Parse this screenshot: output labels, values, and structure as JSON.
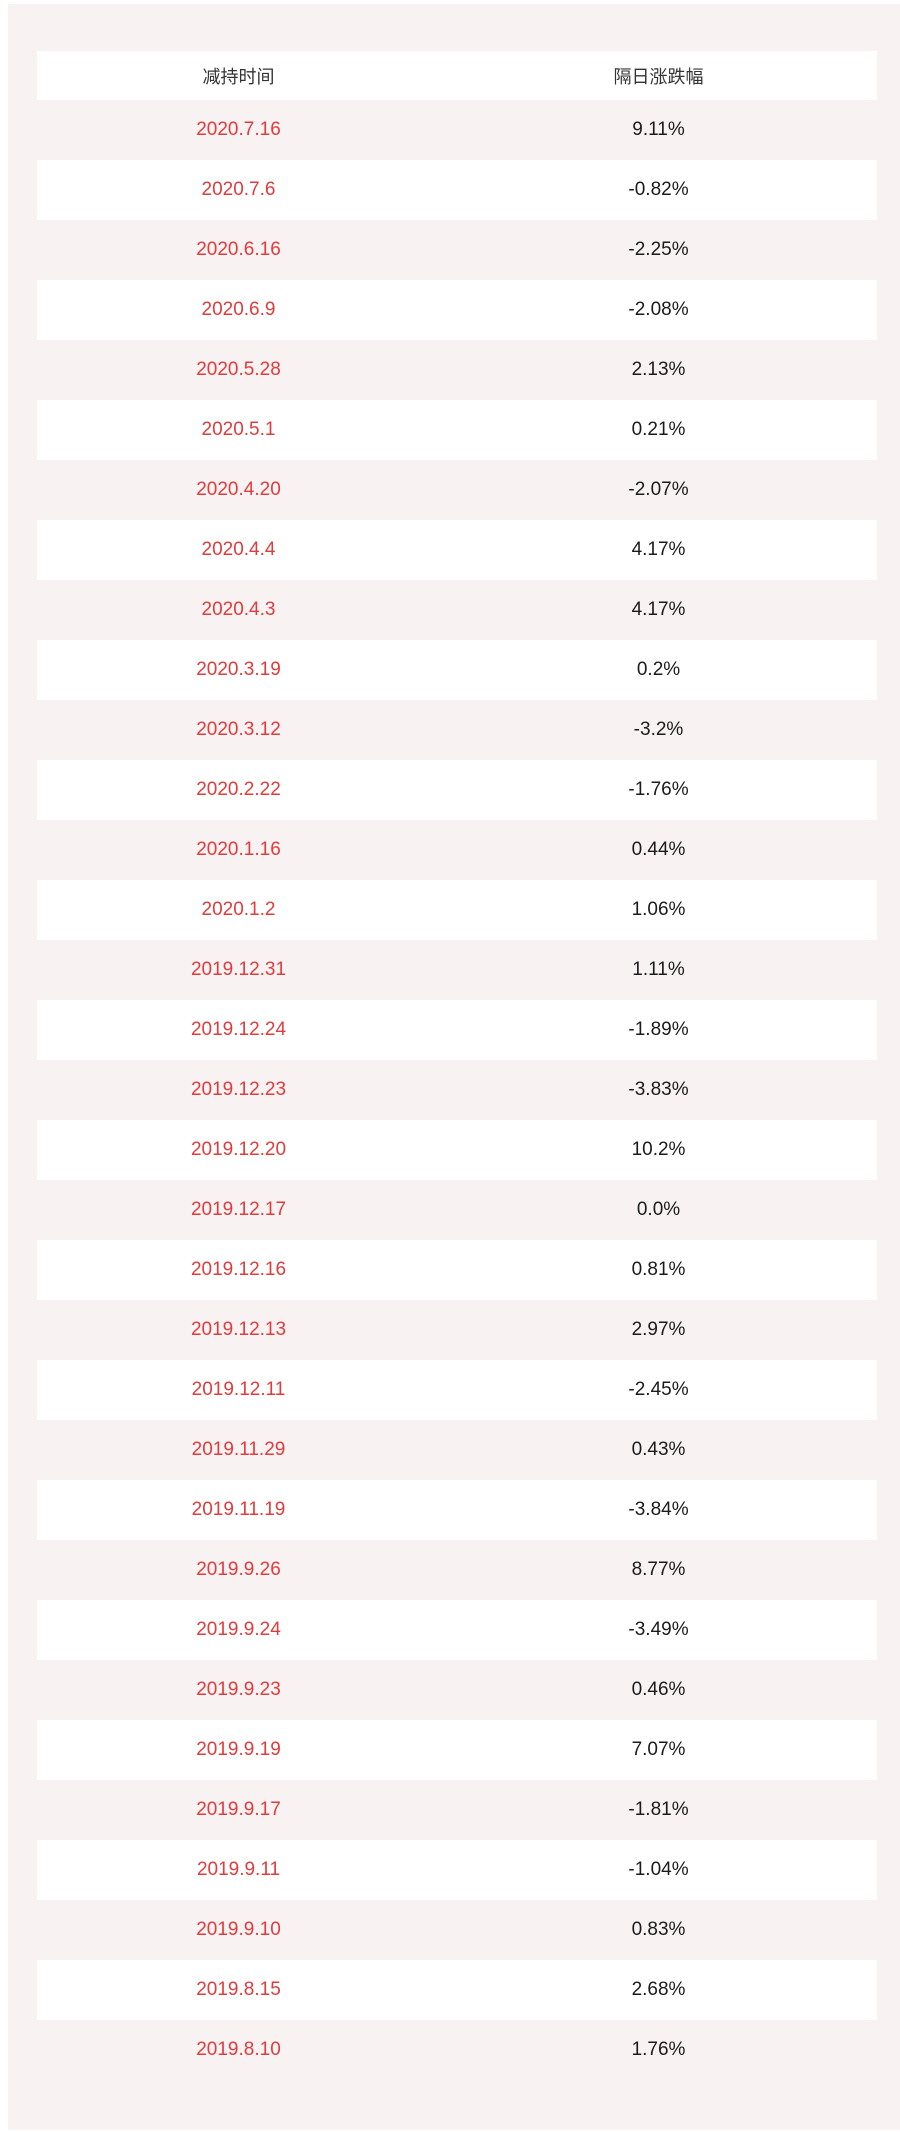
{
  "colors": {
    "page_background": "#f8f2f3",
    "row_white": "#ffffff",
    "row_pink": "#f8f2f3",
    "date_red": "#e03c3c",
    "value_black": "#1b1b1b",
    "header_text": "#333333"
  },
  "chart_data": {
    "type": "table",
    "columns": [
      "减持时间",
      "隔日涨跌幅"
    ],
    "rows": [
      [
        "2020.7.16",
        "9.11%"
      ],
      [
        "2020.7.6",
        "-0.82%"
      ],
      [
        "2020.6.16",
        "-2.25%"
      ],
      [
        "2020.6.9",
        "-2.08%"
      ],
      [
        "2020.5.28",
        "2.13%"
      ],
      [
        "2020.5.1",
        "0.21%"
      ],
      [
        "2020.4.20",
        "-2.07%"
      ],
      [
        "2020.4.4",
        "4.17%"
      ],
      [
        "2020.4.3",
        "4.17%"
      ],
      [
        "2020.3.19",
        "0.2%"
      ],
      [
        "2020.3.12",
        "-3.2%"
      ],
      [
        "2020.2.22",
        "-1.76%"
      ],
      [
        "2020.1.16",
        "0.44%"
      ],
      [
        "2020.1.2",
        "1.06%"
      ],
      [
        "2019.12.31",
        "1.11%"
      ],
      [
        "2019.12.24",
        "-1.89%"
      ],
      [
        "2019.12.23",
        "-3.83%"
      ],
      [
        "2019.12.20",
        "10.2%"
      ],
      [
        "2019.12.17",
        "0.0%"
      ],
      [
        "2019.12.16",
        "0.81%"
      ],
      [
        "2019.12.13",
        "2.97%"
      ],
      [
        "2019.12.11",
        "-2.45%"
      ],
      [
        "2019.11.29",
        "0.43%"
      ],
      [
        "2019.11.19",
        "-3.84%"
      ],
      [
        "2019.9.26",
        "8.77%"
      ],
      [
        "2019.9.24",
        "-3.49%"
      ],
      [
        "2019.9.23",
        "0.46%"
      ],
      [
        "2019.9.19",
        "7.07%"
      ],
      [
        "2019.9.17",
        "-1.81%"
      ],
      [
        "2019.9.11",
        "-1.04%"
      ],
      [
        "2019.9.10",
        "0.83%"
      ],
      [
        "2019.8.15",
        "2.68%"
      ],
      [
        "2019.8.10",
        "1.76%"
      ]
    ]
  }
}
